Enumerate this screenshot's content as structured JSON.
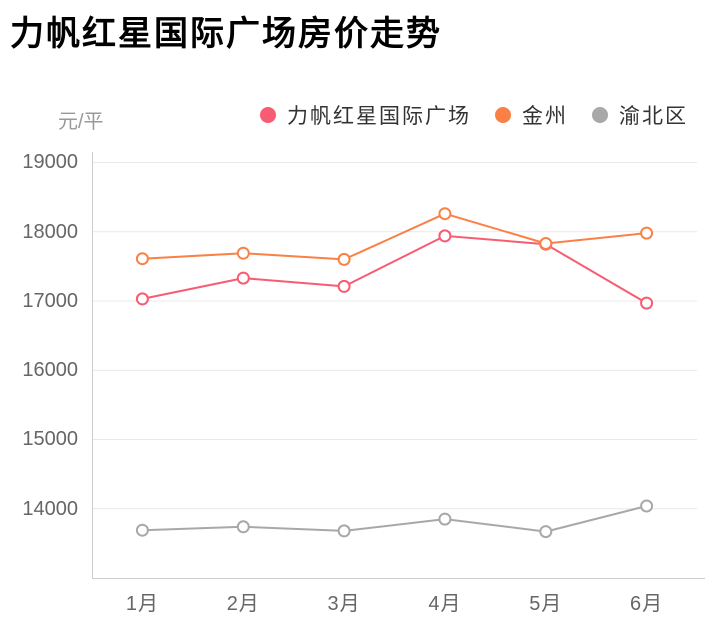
{
  "title": "力帆红星国际广场房价走势",
  "unit_label": "元/平",
  "chart_data": {
    "type": "line",
    "categories": [
      "1月",
      "2月",
      "3月",
      "4月",
      "5月",
      "6月"
    ],
    "series": [
      {
        "name": "力帆红星国际广场",
        "color": "#f75c72",
        "values": [
          17030,
          17330,
          17210,
          17940,
          17820,
          16970
        ]
      },
      {
        "name": "金州",
        "color": "#fa8045",
        "values": [
          17610,
          17690,
          17600,
          18260,
          17830,
          17980
        ]
      },
      {
        "name": "渝北区",
        "color": "#a8a8a8",
        "values": [
          13690,
          13740,
          13680,
          13850,
          13670,
          14040
        ]
      }
    ],
    "title": "力帆红星国际广场房价走势",
    "xlabel": "",
    "ylabel": "元/平",
    "ylim": [
      13000,
      19180
    ],
    "yticks": [
      14000,
      15000,
      16000,
      17000,
      18000,
      19000
    ],
    "grid": true,
    "legend_position": "top",
    "point_style": "hollow-circle"
  },
  "colors": {
    "grid": "#e9e9e9",
    "axis": "#cccccc",
    "tick_label": "#666666",
    "unit_label": "#999999",
    "legend_text": "#333333",
    "title": "#000000",
    "background": "#ffffff",
    "point_fill": "#ffffff"
  }
}
